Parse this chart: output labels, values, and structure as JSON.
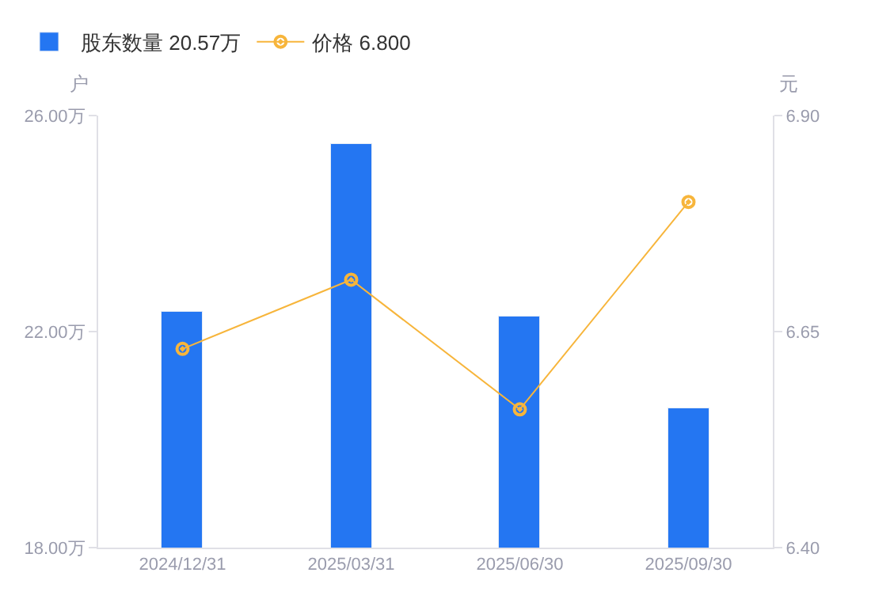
{
  "chart_data": {
    "type": "bar",
    "categories": [
      "2024/12/31",
      "2025/03/31",
      "2025/06/30",
      "2025/09/30"
    ],
    "series": [
      {
        "name": "股东数量 20.57万",
        "color": "#2476f2",
        "values": [
          22.36,
          25.47,
          22.28,
          20.57
        ]
      },
      {
        "name": "价格 6.800",
        "type": "line",
        "axis": "y2",
        "color": "#f7b53b",
        "values": [
          6.63,
          6.71,
          6.56,
          6.8
        ]
      }
    ],
    "ylabel": "户",
    "y2label": "元",
    "ylim": [
      18,
      26
    ],
    "yticks": [
      {
        "value": 18,
        "label": "18.00万"
      },
      {
        "value": 22,
        "label": "22.00万"
      },
      {
        "value": 26,
        "label": "26.00万"
      }
    ],
    "y2lim": [
      6.4,
      6.9
    ],
    "y2ticks": [
      {
        "value": 6.4,
        "label": "6.40"
      },
      {
        "value": 6.65,
        "label": "6.65"
      },
      {
        "value": 6.9,
        "label": "6.90"
      }
    ],
    "legend": "top left",
    "marker": "circle",
    "line_style": "solid"
  }
}
